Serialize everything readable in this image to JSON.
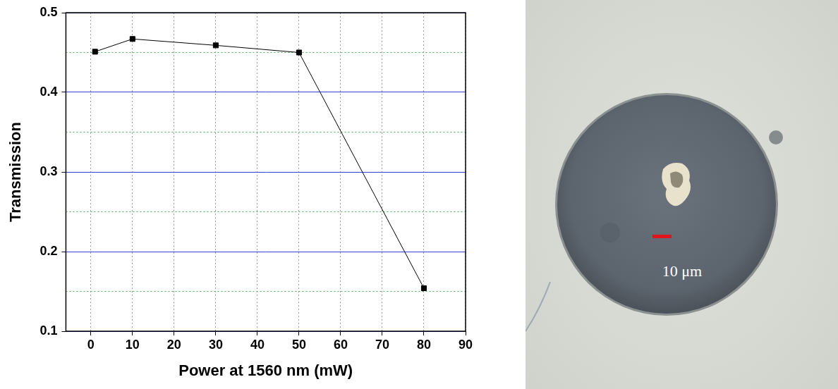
{
  "chart_data": {
    "type": "line",
    "x_label": "Power at 1560 nm (mW)",
    "y_label": "Transmission",
    "x": [
      1,
      10,
      30,
      50,
      80
    ],
    "values": [
      0.451,
      0.467,
      0.459,
      0.45,
      0.154
    ],
    "color": "#000000",
    "marker": "square",
    "line_style": "solid",
    "xlim": [
      -6,
      90
    ],
    "xticks": [
      0,
      10,
      20,
      30,
      40,
      50,
      60,
      70,
      80,
      90
    ],
    "ylim": [
      0.1,
      0.5
    ],
    "yticks": [
      0.1,
      0.2,
      0.3,
      0.4,
      0.5
    ],
    "grid": true
  },
  "image": {
    "scale_bar_label": "10 μm"
  }
}
